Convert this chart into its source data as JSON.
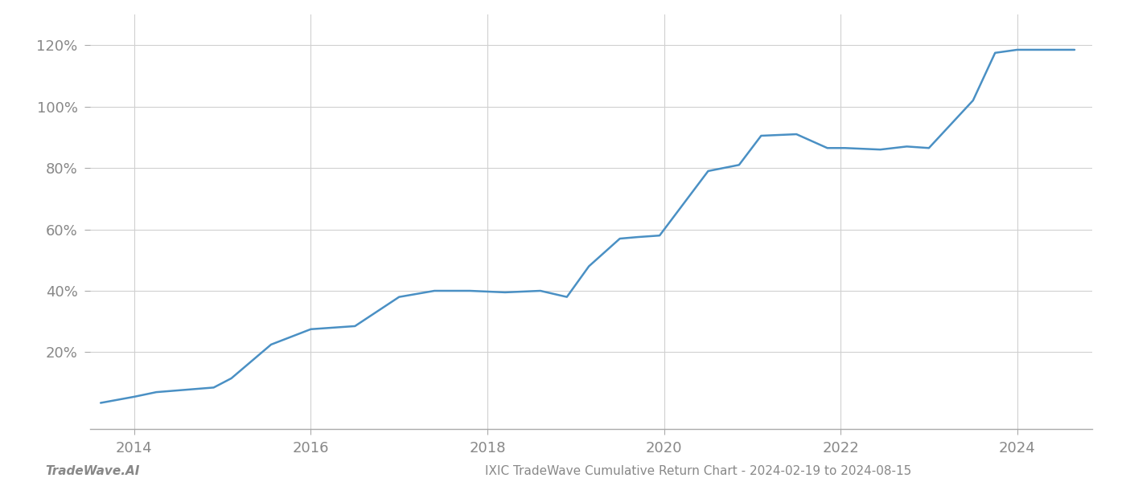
{
  "title": "IXIC TradeWave Cumulative Return Chart - 2024-02-19 to 2024-08-15",
  "watermark": "TradeWave.AI",
  "line_color": "#4a90c4",
  "background_color": "#ffffff",
  "grid_color": "#d0d0d0",
  "data_x": [
    2013.62,
    2014.0,
    2014.25,
    2014.9,
    2015.1,
    2015.55,
    2016.0,
    2016.5,
    2017.0,
    2017.4,
    2017.8,
    2018.2,
    2018.6,
    2018.9,
    2019.15,
    2019.5,
    2019.7,
    2019.95,
    2020.5,
    2020.85,
    2021.1,
    2021.5,
    2021.85,
    2022.05,
    2022.45,
    2022.75,
    2023.0,
    2023.5,
    2023.75,
    2024.0,
    2024.5,
    2024.65
  ],
  "data_y": [
    3.5,
    5.5,
    7.0,
    8.5,
    11.5,
    22.5,
    27.5,
    28.5,
    38.0,
    40.0,
    40.0,
    39.5,
    40.0,
    38.0,
    48.0,
    57.0,
    57.5,
    58.0,
    79.0,
    81.0,
    90.5,
    91.0,
    86.5,
    86.5,
    86.0,
    87.0,
    86.5,
    102.0,
    117.5,
    118.5,
    118.5,
    118.5
  ],
  "xlim": [
    2013.5,
    2024.85
  ],
  "ylim": [
    -5,
    130
  ],
  "yticks": [
    20,
    40,
    60,
    80,
    100,
    120
  ],
  "xticks": [
    2014,
    2016,
    2018,
    2020,
    2022,
    2024
  ],
  "tick_color": "#888888",
  "axis_color": "#aaaaaa",
  "title_fontsize": 11,
  "watermark_fontsize": 11,
  "tick_fontsize": 13,
  "line_width": 1.8
}
